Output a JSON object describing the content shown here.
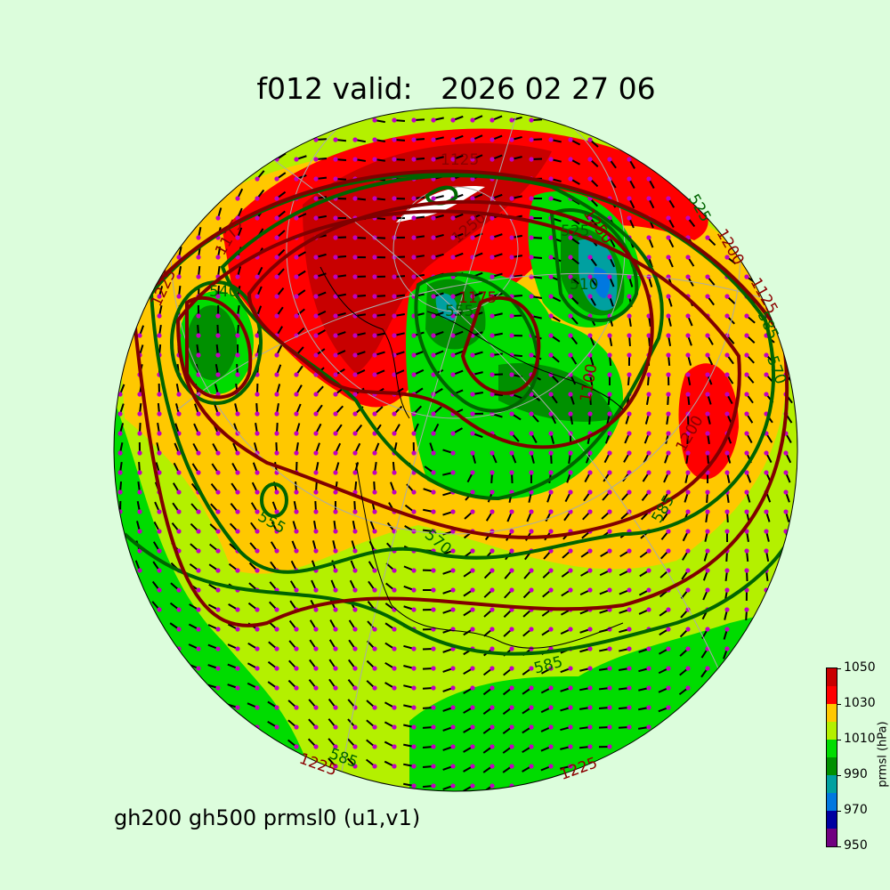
{
  "title": "f012 valid:   2026 02 27 06",
  "subtitle": "gh200 gh500 prmsl0 (u1,v1)",
  "colorbar": {
    "label": "prmsl (hPa)",
    "ticks": [
      "950",
      "970",
      "990",
      "1010",
      "1030",
      "1050"
    ],
    "levels": [
      950,
      960,
      970,
      980,
      990,
      1000,
      1010,
      1020,
      1030,
      1040,
      1050
    ],
    "colors": [
      "#700080",
      "#0000a0",
      "#0078e0",
      "#00a0a0",
      "#009000",
      "#00dc00",
      "#b4f000",
      "#ffc800",
      "#ff0000",
      "#c80000"
    ]
  },
  "map": {
    "projection": "orthographic",
    "background_color": "#dcfddc",
    "gh200_color": "#800000",
    "gh500_color": "#006400",
    "wind_dot_color": "#c000c0",
    "gh200_labels": [
      "1125",
      "1175",
      "1225",
      "1225",
      "1225",
      "1250",
      "1250",
      "1200",
      "1200",
      "1100",
      "1125",
      "1175"
    ],
    "gh500_labels": [
      "540",
      "555",
      "525",
      "570",
      "585",
      "585",
      "585",
      "585",
      "570",
      "510",
      "525",
      "555"
    ]
  }
}
